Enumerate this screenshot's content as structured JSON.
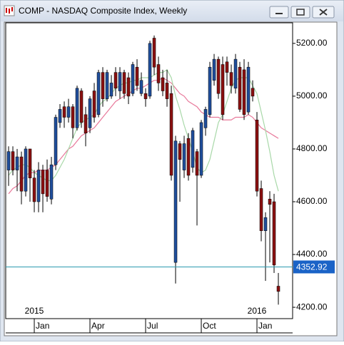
{
  "chart_data": {
    "type": "candlestick",
    "title": "COMP - NASDAQ Composite Index, Weekly",
    "up_color": "#1f4e9c",
    "down_color": "#8b1010",
    "x": [
      0,
      1,
      2,
      3,
      4,
      5,
      6,
      7,
      8,
      9,
      10,
      11,
      12,
      13,
      14,
      15,
      16,
      17,
      18,
      19,
      20,
      21,
      22,
      23,
      24,
      25,
      26,
      27,
      28,
      29,
      30,
      31,
      32,
      33,
      34,
      35,
      36,
      37,
      38,
      39,
      40,
      41,
      42,
      43,
      44,
      45,
      46,
      47,
      48,
      49,
      50,
      51,
      52,
      53,
      54,
      55,
      56,
      57,
      58,
      59,
      60,
      61,
      62,
      63
    ],
    "open": [
      4720,
      4790,
      4720,
      4770,
      4640,
      4800,
      4690,
      4600,
      4720,
      4720,
      4610,
      4740,
      4900,
      4960,
      4920,
      4960,
      4880,
      5020,
      4930,
      4880,
      5020,
      4930,
      5090,
      4990,
      5000,
      5090,
      5020,
      5090,
      5070,
      5010,
      5110,
      5010,
      5010,
      5000,
      5220,
      5120,
      5070,
      5050,
      5010,
      4370,
      4820,
      4720,
      4840,
      4730,
      4790,
      4700,
      4880,
      4930,
      5060,
      5140,
      5120,
      5130,
      5090,
      5030,
      5110,
      5100,
      4940,
      5030,
      4910,
      4650,
      4490,
      4610,
      4600,
      4280
    ],
    "high": [
      4810,
      4810,
      4800,
      4790,
      4810,
      4800,
      4720,
      4750,
      4740,
      4760,
      4770,
      4930,
      4970,
      4980,
      4990,
      4970,
      5040,
      5030,
      4960,
      5000,
      5050,
      5100,
      5110,
      5100,
      5080,
      5110,
      5110,
      5100,
      5090,
      5130,
      5140,
      5090,
      5030,
      5210,
      5230,
      5150,
      5100,
      5100,
      5040,
      4850,
      4830,
      4850,
      4860,
      4880,
      4800,
      4910,
      4960,
      5130,
      5160,
      5150,
      5150,
      5150,
      5120,
      5160,
      5130,
      5140,
      5130,
      5060,
      4940,
      4680,
      4560,
      4640,
      4630,
      4330
    ],
    "low": [
      4660,
      4700,
      4640,
      4590,
      4620,
      4600,
      4560,
      4560,
      4560,
      4600,
      4590,
      4720,
      4880,
      4880,
      4900,
      4840,
      4870,
      4880,
      4810,
      4860,
      4900,
      4920,
      4960,
      4980,
      4990,
      5000,
      4990,
      4990,
      4970,
      5000,
      5020,
      5000,
      4960,
      4990,
      5080,
      5020,
      5000,
      4960,
      4680,
      4290,
      4600,
      4690,
      4680,
      4710,
      4510,
      4690,
      4850,
      4920,
      5040,
      4990,
      4910,
      5040,
      5010,
      5010,
      4940,
      4910,
      4930,
      4980,
      4620,
      4450,
      4300,
      4370,
      4330,
      4210
    ],
    "close": [
      4790,
      4720,
      4770,
      4640,
      4800,
      4690,
      4600,
      4720,
      4630,
      4620,
      4740,
      4920,
      4950,
      4920,
      4960,
      4880,
      5030,
      4900,
      4860,
      4990,
      4920,
      5090,
      4990,
      5090,
      5050,
      5030,
      5090,
      5010,
      5000,
      5120,
      5040,
      5060,
      4990,
      5200,
      5110,
      5050,
      5020,
      4990,
      4700,
      4830,
      4760,
      4820,
      4700,
      4870,
      4700,
      4900,
      4950,
      5110,
      5140,
      5010,
      4930,
      5090,
      5040,
      5140,
      4950,
      4930,
      5110,
      5000,
      4640,
      4490,
      4540,
      4590,
      4360,
      4260
    ],
    "averages": [
      {
        "color": "#e8789a",
        "values": [
          4630,
          4650,
          4660,
          4680,
          4700,
          4710,
          4710,
          4720,
          4720,
          4720,
          4730,
          4740,
          4760,
          4780,
          4800,
          4810,
          4830,
          4850,
          4860,
          4870,
          4880,
          4900,
          4920,
          4940,
          4960,
          4980,
          4990,
          5000,
          5010,
          5020,
          5030,
          5030,
          5040,
          5050,
          5060,
          5060,
          5070,
          5060,
          5050,
          5030,
          5010,
          5000,
          4980,
          4970,
          4960,
          4940,
          4930,
          4920,
          4920,
          4920,
          4910,
          4910,
          4910,
          4920,
          4920,
          4920,
          4930,
          4920,
          4900,
          4880,
          4870,
          4860,
          4850,
          4840
        ]
      },
      {
        "color": "#a8d8a8",
        "values": [
          4700,
          4720,
          4730,
          4740,
          4740,
          4730,
          4710,
          4700,
          4690,
          4680,
          4680,
          4700,
          4730,
          4760,
          4800,
          4840,
          4880,
          4900,
          4910,
          4920,
          4930,
          4960,
          4980,
          4990,
          5010,
          5030,
          5040,
          5050,
          5050,
          5060,
          5060,
          5070,
          5070,
          5070,
          5080,
          5090,
          5090,
          5100,
          5070,
          5000,
          4950,
          4890,
          4840,
          4790,
          4730,
          4710,
          4720,
          4760,
          4830,
          4900,
          4930,
          4980,
          5030,
          5060,
          5070,
          5070,
          5070,
          5040,
          5010,
          4940,
          4870,
          4790,
          4700,
          4640
        ]
      }
    ],
    "last_price": 4352.92,
    "xlim": [
      -0.67,
      66.33
    ],
    "ylim": [
      4157,
      5278
    ],
    "xticks": [
      {
        "value": 6,
        "label": "Jan"
      },
      {
        "value": 19,
        "label": "Apr"
      },
      {
        "value": 32,
        "label": "Jul"
      },
      {
        "value": 45,
        "label": "Oct"
      },
      {
        "value": 58,
        "label": "Jan"
      }
    ],
    "yticks": [
      {
        "value": 4200,
        "label": "4200.00"
      },
      {
        "value": 4400,
        "label": "4400.00"
      },
      {
        "value": 4600,
        "label": "4600.00"
      },
      {
        "value": 4800,
        "label": "4800.00"
      },
      {
        "value": 5000,
        "label": "5000.00"
      },
      {
        "value": 5200,
        "label": "5200.00"
      }
    ],
    "annotations": [
      {
        "x": 6,
        "text": "2015"
      },
      {
        "x": 58,
        "text": "2016"
      }
    ]
  }
}
